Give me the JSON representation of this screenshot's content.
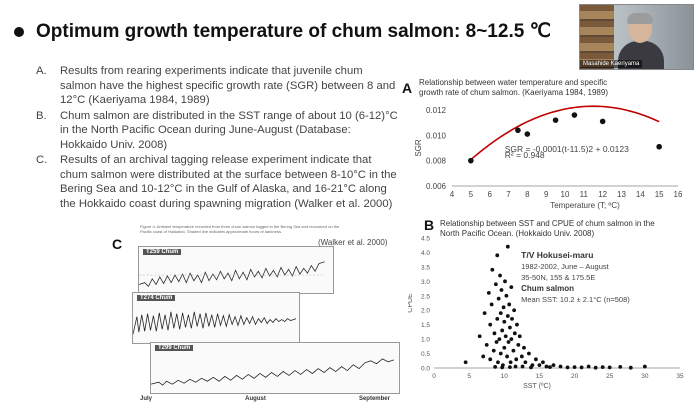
{
  "slide": {
    "title": "Optimum growth temperature of chum salmon: 8~12.5 ℃"
  },
  "video": {
    "participant_name": "Masahide Kaeriyama"
  },
  "findings": [
    {
      "letter": "A.",
      "text": "Results from rearing experiments indicate that juvenile chum salmon have the highest specific growth rate (SGR) between 8 and 12°C (Kaeriyama 1984, 1989)"
    },
    {
      "letter": "B.",
      "text": "Chum salmon are distributed in the SST range of about 10 (6-12)°C in the North Pacific Ocean during June-August (Database: Hokkaido Univ. 2008)"
    },
    {
      "letter": "C.",
      "text": "Results of an archival tagging release experiment indicate that chum salmon were distributed at the surface between 8-10°C in the Bering Sea and 10-12°C in the Gulf of Alaska, and 16-21°C along the Hokkaido coast during spawning migration (Walker et al. 2000)"
    }
  ],
  "panelA": {
    "label": "A",
    "caption_line1": "Relationship between water temperature and specific",
    "caption_line2": "growth rate of chum salmon. (Kaeriyama 1984, 1989)",
    "equation": "SGR = -0.0001(t-11.5)2 + 0.0123",
    "r2": "R² = 0.948",
    "ylabel": "SGR",
    "xlabel": "Temperature (T; ºC)"
  },
  "panelB": {
    "label": "B",
    "caption_line1": "Relationship between SST and CPUE of chum salmon in the",
    "caption_line2": "North Pacific Ocean. (Hokkaido Univ. 2008)",
    "vessel": "T/V Hokusei-maru",
    "years": "1982-2002, June – August",
    "area": "35-50N, 155 & 175.5E",
    "species": "Chum salmon",
    "mean_sst": "Mean SST: 10.2 ± 2.1°C (n=508)",
    "ylabel": "CPUE",
    "xlabel": "SST (ºC)"
  },
  "panelC": {
    "label": "C",
    "credit": "(Walker et al. 2000)",
    "figure_caption": "Figure 4.  Ambient temperature recorded from three chum salmon tagged in the Bering Sea and recovered on the Pacific coast of Hokkaido. Shaded line indicates approximate hours of darkness.",
    "tags": [
      "T259 Chum",
      "T274 Chum",
      "T299 Chum"
    ],
    "months": [
      "July",
      "August",
      "September"
    ]
  },
  "colors": {
    "points": "#111111",
    "trend": "#c00000",
    "text": "#444444"
  },
  "chart_data": [
    {
      "type": "scatter",
      "id": "A",
      "x": [
        5,
        7.5,
        8,
        9.5,
        10.5,
        12,
        15
      ],
      "y": [
        0.008,
        0.0104,
        0.0101,
        0.0112,
        0.0116,
        0.0111,
        0.0091
      ],
      "fit": {
        "type": "quadratic",
        "a": -0.0001,
        "h": 11.5,
        "k": 0.0123
      },
      "xlim": [
        4,
        16
      ],
      "ylim": [
        0.006,
        0.012
      ],
      "xticks": [
        4,
        5,
        6,
        7,
        8,
        9,
        10,
        11,
        12,
        13,
        14,
        15,
        16
      ],
      "yticks": [
        0.006,
        0.008,
        0.01,
        0.012
      ],
      "ytick_labels": [
        "0.006",
        "0.008",
        "0.010",
        "0.012"
      ],
      "xlabel": "Temperature (T; ºC)",
      "ylabel": "SGR",
      "grid": false
    },
    {
      "type": "scatter",
      "id": "B",
      "xlim": [
        0,
        35
      ],
      "ylim": [
        0,
        4.5
      ],
      "xticks": [
        0,
        5,
        10,
        15,
        20,
        25,
        30,
        35
      ],
      "yticks": [
        0.0,
        0.5,
        1.0,
        1.5,
        2.0,
        2.5,
        3.0,
        3.5,
        4.0,
        4.5
      ],
      "ytick_labels": [
        "0.0",
        "0.5",
        "1.0",
        "1.5",
        "2.0",
        "2.5",
        "3.0",
        "3.5",
        "4.0",
        "4.5"
      ],
      "xlabel": "SST (ºC)",
      "ylabel": "CPUE",
      "grid": false,
      "points": [
        [
          4.5,
          0.2
        ],
        [
          6.5,
          1.1
        ],
        [
          7,
          0.4
        ],
        [
          7.2,
          1.9
        ],
        [
          7.5,
          0.8
        ],
        [
          7.8,
          2.6
        ],
        [
          8,
          0.3
        ],
        [
          8,
          1.5
        ],
        [
          8.2,
          2.2
        ],
        [
          8.3,
          3.4
        ],
        [
          8.5,
          0.6
        ],
        [
          8.6,
          1.2
        ],
        [
          8.8,
          2.9
        ],
        [
          8.9,
          0.9
        ],
        [
          9,
          3.9
        ],
        [
          9,
          1.7
        ],
        [
          9.1,
          0.2
        ],
        [
          9.2,
          2.4
        ],
        [
          9.3,
          1.0
        ],
        [
          9.4,
          3.2
        ],
        [
          9.5,
          0.5
        ],
        [
          9.5,
          1.9
        ],
        [
          9.6,
          2.7
        ],
        [
          9.7,
          1.3
        ],
        [
          9.8,
          0.1
        ],
        [
          9.9,
          2.1
        ],
        [
          10,
          0.7
        ],
        [
          10,
          1.6
        ],
        [
          10.1,
          3.0
        ],
        [
          10.2,
          1.1
        ],
        [
          10.3,
          2.5
        ],
        [
          10.4,
          0.4
        ],
        [
          10.5,
          4.2
        ],
        [
          10.5,
          1.8
        ],
        [
          10.6,
          0.9
        ],
        [
          10.7,
          2.2
        ],
        [
          10.8,
          1.4
        ],
        [
          10.9,
          0.2
        ],
        [
          11,
          2.8
        ],
        [
          11,
          1.0
        ],
        [
          11.1,
          1.7
        ],
        [
          11.3,
          0.6
        ],
        [
          11.4,
          2.0
        ],
        [
          11.5,
          1.2
        ],
        [
          11.7,
          0.3
        ],
        [
          11.8,
          1.5
        ],
        [
          12,
          0.8
        ],
        [
          12.2,
          1.1
        ],
        [
          12.5,
          0.4
        ],
        [
          12.8,
          0.7
        ],
        [
          13,
          0.2
        ],
        [
          13.5,
          0.5
        ],
        [
          14,
          0.1
        ],
        [
          14.5,
          0.3
        ],
        [
          15,
          0.1
        ],
        [
          15.5,
          0.2
        ],
        [
          16,
          0.05
        ],
        [
          17,
          0.1
        ],
        [
          18,
          0.05
        ],
        [
          19,
          0.02
        ],
        [
          20,
          0.03
        ],
        [
          21,
          0.02
        ],
        [
          22,
          0.05
        ],
        [
          23,
          0.01
        ],
        [
          24,
          0.03
        ],
        [
          25,
          0.02
        ],
        [
          26.5,
          0.04
        ],
        [
          28,
          0.01
        ],
        [
          30,
          0.05
        ],
        [
          12.6,
          0.05
        ],
        [
          11.6,
          0.05
        ],
        [
          10.8,
          0.03
        ],
        [
          9.7,
          0.02
        ],
        [
          8.7,
          0.04
        ],
        [
          13.8,
          0.02
        ],
        [
          16.5,
          0.03
        ]
      ]
    }
  ]
}
